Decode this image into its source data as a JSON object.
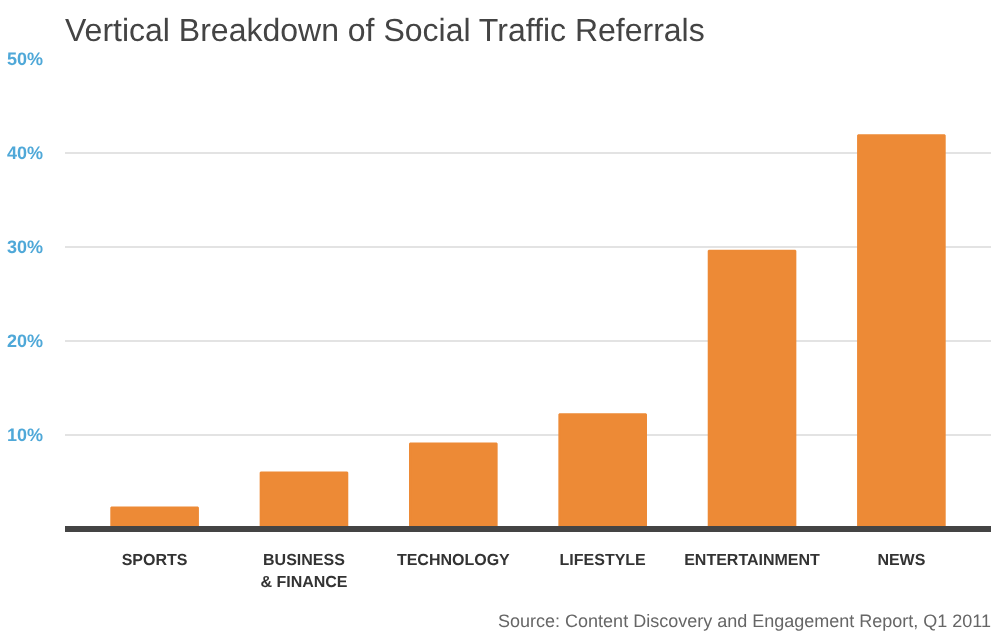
{
  "chart_data": {
    "type": "bar",
    "title": "Vertical Breakdown of Social Traffic Referrals",
    "categories": [
      "SPORTS",
      "BUSINESS\n& FINANCE",
      "TECHNOLOGY",
      "LIFESTYLE",
      "ENTERTAINMENT",
      "NEWS"
    ],
    "values": [
      2.3,
      6.0,
      9.1,
      12.2,
      29.6,
      41.9
    ],
    "color": "#ed8a36",
    "ylim": [
      0,
      50
    ],
    "yticks": [
      {
        "value": 10,
        "label": "10%"
      },
      {
        "value": 20,
        "label": "20%"
      },
      {
        "value": 30,
        "label": "30%"
      },
      {
        "value": 40,
        "label": "40%"
      },
      {
        "value": 50,
        "label": "50%"
      }
    ],
    "grid": "y",
    "annotations": [
      "Source: Content Discovery and Engagement Report, Q1 2011"
    ]
  }
}
